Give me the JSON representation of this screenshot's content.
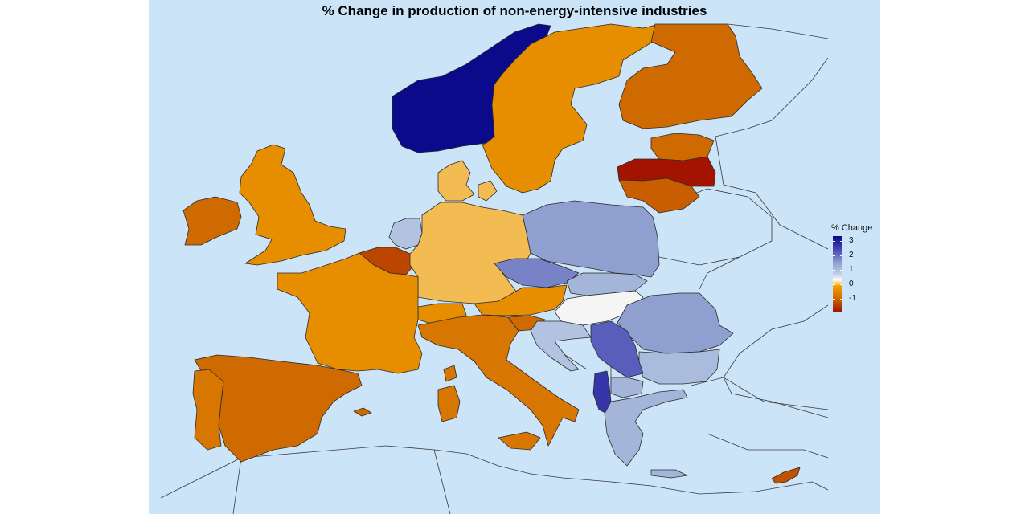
{
  "title": "% Change in production of non-energy-intensive industries",
  "legend": {
    "title": "% Change",
    "ticks": [
      "3",
      "2",
      "1",
      "0",
      "-1"
    ],
    "colors": {
      "high": "#0a0a8a",
      "mid": "#ffffff",
      "low": "#a31400"
    }
  },
  "colors": {
    "sea": "#cce4f7",
    "non_eu_land": "#cce4f7"
  },
  "regions": {
    "norway": 3.5,
    "sweden": -0.3,
    "finland": -0.6,
    "estonia": -0.6,
    "latvia": -1.3,
    "lithuania": -0.7,
    "denmark": -0.1,
    "ireland": -0.6,
    "uk": -0.3,
    "netherlands": 0.8,
    "belgium": -0.9,
    "germany": -0.1,
    "poland": 1.3,
    "czechia": 1.6,
    "slovakia": 1.0,
    "austria": -0.3,
    "switzerland": -0.3,
    "slovenia": -0.6,
    "hungary": 0.0,
    "romania": 1.3,
    "bulgaria": 0.9,
    "croatia": 0.8,
    "serbia": 2.0,
    "albania": 2.6,
    "north_macedonia": 1.0,
    "greece": 1.0,
    "france": -0.3,
    "spain": -0.6,
    "portugal": -0.5,
    "italy": -0.5,
    "cyprus": -0.8
  }
}
